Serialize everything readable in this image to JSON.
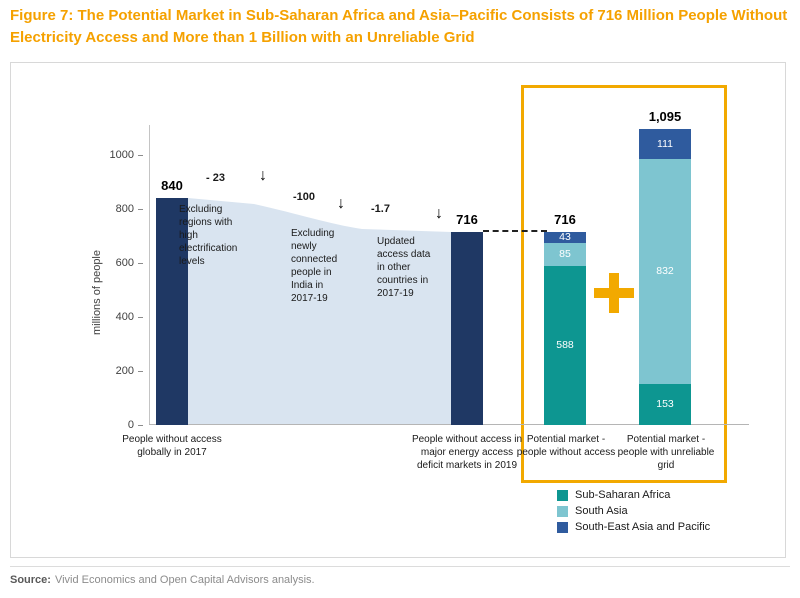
{
  "figure": {
    "title": "Figure 7: The Potential Market in Sub-Saharan Africa and Asia–Pacific Consists of 716 Million People Without Electricity Access and More than 1 Billion with an Unreliable Grid"
  },
  "source": {
    "label": "Source:",
    "text": "Vivid Economics and Open Capital Advisors analysis."
  },
  "icons": {
    "down_arrow": "↓"
  },
  "chart_data": {
    "type": "bar",
    "subtype": "waterfall-with-stacked-bars",
    "ylabel": "millions of people",
    "ylim": [
      0,
      1100
    ],
    "yticks": [
      0,
      200,
      400,
      600,
      800,
      1000
    ],
    "grid": false,
    "waterfall": {
      "start": {
        "value": 840,
        "value_label": "840",
        "label": "People without access globally in 2017"
      },
      "steps": [
        {
          "value": -23,
          "value_label": "- 23",
          "annotation": "Excluding regions with high electrification levels"
        },
        {
          "value": -100,
          "value_label": "-100",
          "annotation": "Excluding newly connected people in India in 2017-19"
        },
        {
          "value": -1.7,
          "value_label": "-1.7",
          "annotation": "Updated access data in other countries in 2017-19"
        }
      ],
      "end": {
        "value": 716,
        "value_label": "716",
        "label": "People without access in major energy access deficit markets in 2019"
      }
    },
    "stacked_bars": [
      {
        "total_label": "716",
        "label": "Potential market - people without access",
        "segments": [
          {
            "name": "South-East Asia and Pacific",
            "value": 43
          },
          {
            "name": "South Asia",
            "value": 85
          },
          {
            "name": "Sub-Saharan Africa",
            "value": 588
          }
        ]
      },
      {
        "total_label": "1,095",
        "label": "Potential market - people with unreliable grid",
        "segments": [
          {
            "name": "South-East Asia and Pacific",
            "value": 111
          },
          {
            "name": "South Asia",
            "value": 832
          },
          {
            "name": "Sub-Saharan Africa",
            "value": 153
          }
        ]
      }
    ],
    "legend": [
      {
        "label": "Sub-Saharan Africa",
        "color": "#0D9691"
      },
      {
        "label": "South Asia",
        "color": "#7EC5D0"
      },
      {
        "label": "South-East Asia and Pacific",
        "color": "#2F5B9E"
      }
    ],
    "colors": {
      "title_orange": "#F5A100",
      "highlight_box": "#F2A900",
      "navy_bar": "#1F3864",
      "waterfall_fill": "#D9E4F0",
      "sub_saharan_africa": "#0D9691",
      "south_asia": "#7EC5D0",
      "south_east_asia_pacific": "#2F5B9E"
    }
  }
}
